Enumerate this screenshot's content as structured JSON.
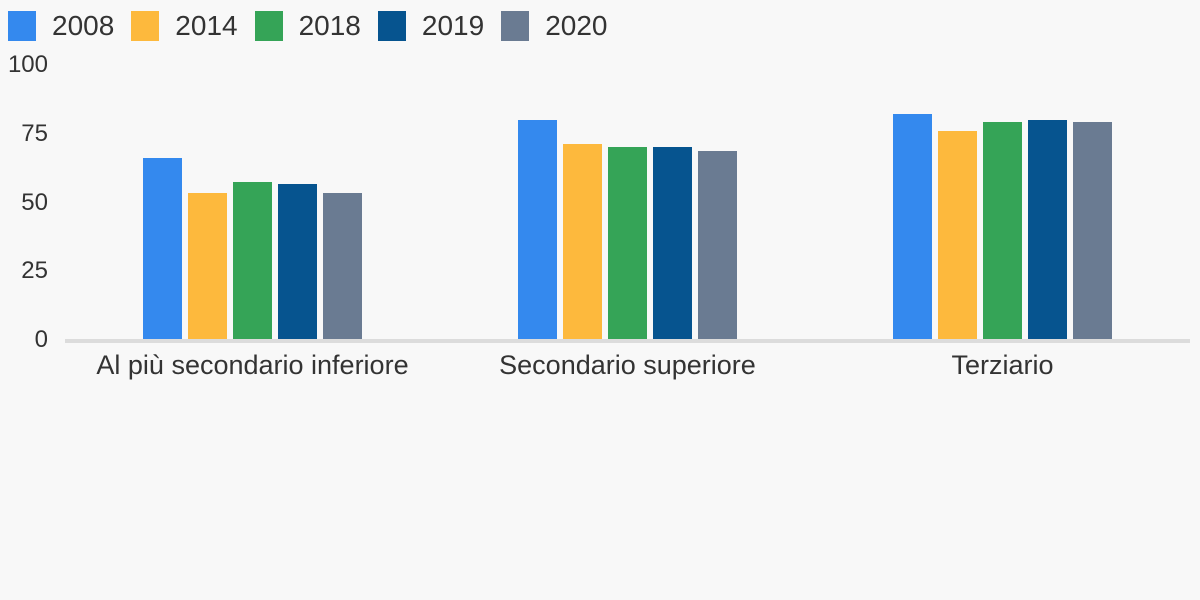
{
  "theme": {
    "background": "#f8f8f8",
    "axis_color": "#dcdcdc",
    "text_color": "#333333"
  },
  "chart_data": {
    "type": "bar",
    "title": "",
    "xlabel": "",
    "ylabel": "",
    "categories": [
      "Al più secondario inferiore",
      "Secondario superiore",
      "Terziario"
    ],
    "series": [
      {
        "name": "2008",
        "color": "#3489ee",
        "values": [
          66,
          79.5,
          82
        ]
      },
      {
        "name": "2014",
        "color": "#fdb93d",
        "values": [
          53,
          71,
          75.5
        ]
      },
      {
        "name": "2018",
        "color": "#35a457",
        "values": [
          57,
          70,
          79
        ]
      },
      {
        "name": "2019",
        "color": "#06548f",
        "values": [
          56.5,
          70,
          79.5
        ]
      },
      {
        "name": "2020",
        "color": "#6a7b92",
        "values": [
          53,
          68.5,
          79
        ]
      }
    ],
    "ylim": [
      0,
      100
    ],
    "yticks": [
      0,
      25,
      50,
      75,
      100
    ],
    "grid": false,
    "legend_position": "top-left"
  }
}
